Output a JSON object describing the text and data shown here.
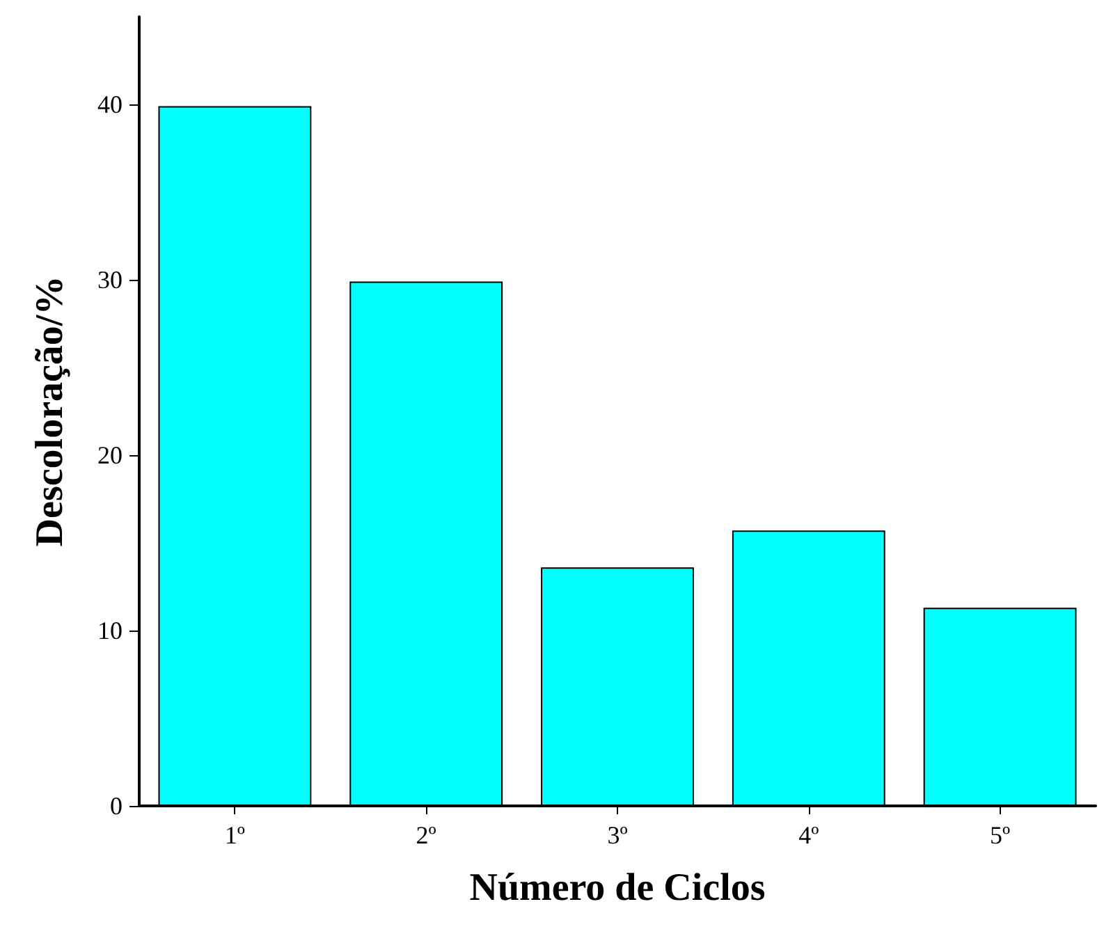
{
  "chart_data": {
    "type": "bar",
    "xlabel": "Número de Ciclos",
    "ylabel": "Descoloração/%",
    "categories": [
      "1º",
      "2º",
      "3º",
      "4º",
      "5º"
    ],
    "values": [
      39.9,
      29.9,
      13.6,
      15.7,
      11.3
    ],
    "color": "#00ffff",
    "ylim": [
      0,
      45
    ],
    "yticks": [
      0,
      10,
      20,
      30,
      40
    ],
    "grid": false
  }
}
